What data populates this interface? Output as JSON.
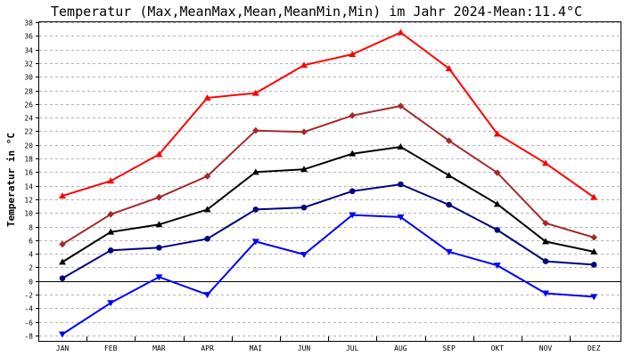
{
  "chart_data": {
    "type": "line",
    "title": "Temperatur (Max,MeanMax,Mean,MeanMin,Min) im Jahr 2024-Mean:11.4°C",
    "ylabel": "Temperatur in °C",
    "xlabel": "",
    "categories": [
      "JAN",
      "FEB",
      "MAR",
      "APR",
      "MAI",
      "JUN",
      "JUL",
      "AUG",
      "SEP",
      "OKT",
      "NOV",
      "DEZ"
    ],
    "yticks": [
      "-8",
      "-6",
      "-4",
      "-2",
      "0",
      "2",
      "4",
      "6",
      "8",
      "10",
      "12",
      "14",
      "16",
      "18",
      "20",
      "22",
      "24",
      "26",
      "28",
      "30",
      "32",
      "34",
      "36",
      "38"
    ],
    "ylim": [
      -8,
      38
    ],
    "grid": true,
    "legend": "none",
    "series": [
      {
        "color": "#ff0000",
        "marker": "triangle-up",
        "values": [
          12.5,
          14.7,
          18.6,
          26.9,
          27.6,
          31.7,
          33.3,
          36.5,
          31.2,
          21.6,
          17.3,
          12.3
        ]
      },
      {
        "color": "#a52a2a",
        "marker": "diamond",
        "values": [
          5.4,
          9.8,
          12.3,
          15.4,
          22.1,
          21.9,
          24.3,
          25.7,
          20.6,
          15.9,
          8.5,
          6.4
        ]
      },
      {
        "color": "#000000",
        "marker": "triangle-up",
        "values": [
          2.8,
          7.2,
          8.3,
          10.5,
          16.0,
          16.4,
          18.7,
          19.7,
          15.5,
          11.3,
          5.8,
          4.3
        ]
      },
      {
        "color": "#000080",
        "marker": "circle",
        "values": [
          0.4,
          4.5,
          4.9,
          6.2,
          10.5,
          10.8,
          13.2,
          14.2,
          11.2,
          7.5,
          2.9,
          2.4
        ]
      },
      {
        "color": "#0000ff",
        "marker": "triangle-down",
        "values": [
          -7.8,
          -3.2,
          0.6,
          -2.0,
          5.8,
          3.9,
          9.7,
          9.4,
          4.3,
          2.3,
          -1.8,
          -2.3
        ]
      }
    ]
  }
}
